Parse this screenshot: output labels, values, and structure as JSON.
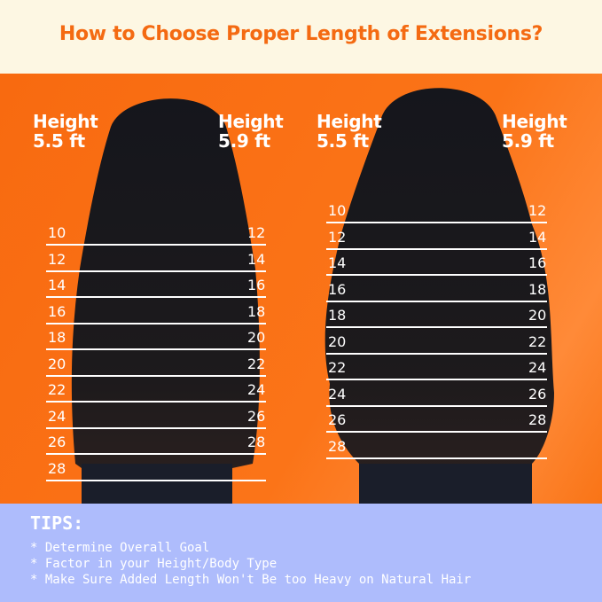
{
  "title": "How to Choose Proper Length of Extensions?",
  "colors": {
    "accent_orange": "#f46a12",
    "header_bg": "#fdf7e3",
    "tips_bg": "#aebcfc"
  },
  "panels": [
    {
      "hair_style": "straight",
      "left_label": {
        "line1": "Height",
        "line2": "5.5 ft"
      },
      "right_label": {
        "line1": "Height",
        "line2": "5.9 ft"
      },
      "left_lengths": [
        "10",
        "12",
        "14",
        "16",
        "18",
        "20",
        "22",
        "24",
        "26",
        "28"
      ],
      "right_lengths": [
        "12",
        "14",
        "16",
        "18",
        "20",
        "22",
        "24",
        "26",
        "28"
      ]
    },
    {
      "hair_style": "wavy",
      "left_label": {
        "line1": "Height",
        "line2": "5.5 ft"
      },
      "right_label": {
        "line1": "Height",
        "line2": "5.9 ft"
      },
      "left_lengths": [
        "10",
        "12",
        "14",
        "16",
        "18",
        "20",
        "22",
        "24",
        "26",
        "28"
      ],
      "right_lengths": [
        "12",
        "14",
        "16",
        "18",
        "20",
        "22",
        "24",
        "26",
        "28"
      ]
    }
  ],
  "tips": {
    "title": "TIPS:",
    "items": [
      "* Determine Overall Goal",
      "* Factor in your Height/Body Type",
      "* Make Sure Added Length Won't Be too Heavy on Natural Hair"
    ]
  }
}
